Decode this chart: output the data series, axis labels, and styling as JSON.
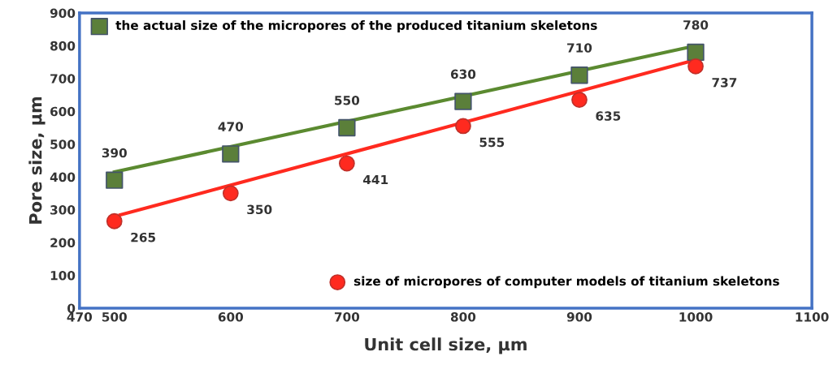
{
  "chart_data": {
    "type": "scatter",
    "xlabel": "Unit cell size, µm",
    "ylabel": "Pore size, µm",
    "xlim": [
      470,
      1100
    ],
    "xticks": [
      470,
      500,
      600,
      700,
      800,
      900,
      1000,
      1100
    ],
    "ylim": [
      0,
      900
    ],
    "yticks": [
      0,
      100,
      200,
      300,
      400,
      500,
      600,
      700,
      800,
      900
    ],
    "grid": false,
    "legend": "top left",
    "series": [
      {
        "name": "the actual size of the micropores of the produced titanium skeletons",
        "color": "#5b7f3a",
        "marker": "square",
        "x": [
          500,
          600,
          700,
          800,
          900,
          1000
        ],
        "values": [
          390,
          470,
          550,
          630,
          710,
          780
        ],
        "value_labels": [
          "390",
          "470",
          "550",
          "630",
          "710",
          "780"
        ]
      },
      {
        "name": "size of micropores of computer models of titanium skeletons",
        "color": "#ff2a1f",
        "marker": "circle",
        "x": [
          500,
          600,
          700,
          800,
          900,
          1000
        ],
        "values": [
          265,
          350,
          441,
          555,
          635,
          737
        ],
        "value_labels": [
          "265",
          "350",
          "441",
          "555",
          "635",
          "737"
        ]
      },
      {
        "type": "line",
        "color": "#5b8a30",
        "marker": "none",
        "x": [
          500,
          1000
        ],
        "values": [
          415,
          800
        ]
      },
      {
        "type": "line",
        "color": "#ff2a1f",
        "marker": "none",
        "x": [
          505,
          1000
        ],
        "values": [
          284,
          757
        ]
      }
    ]
  }
}
